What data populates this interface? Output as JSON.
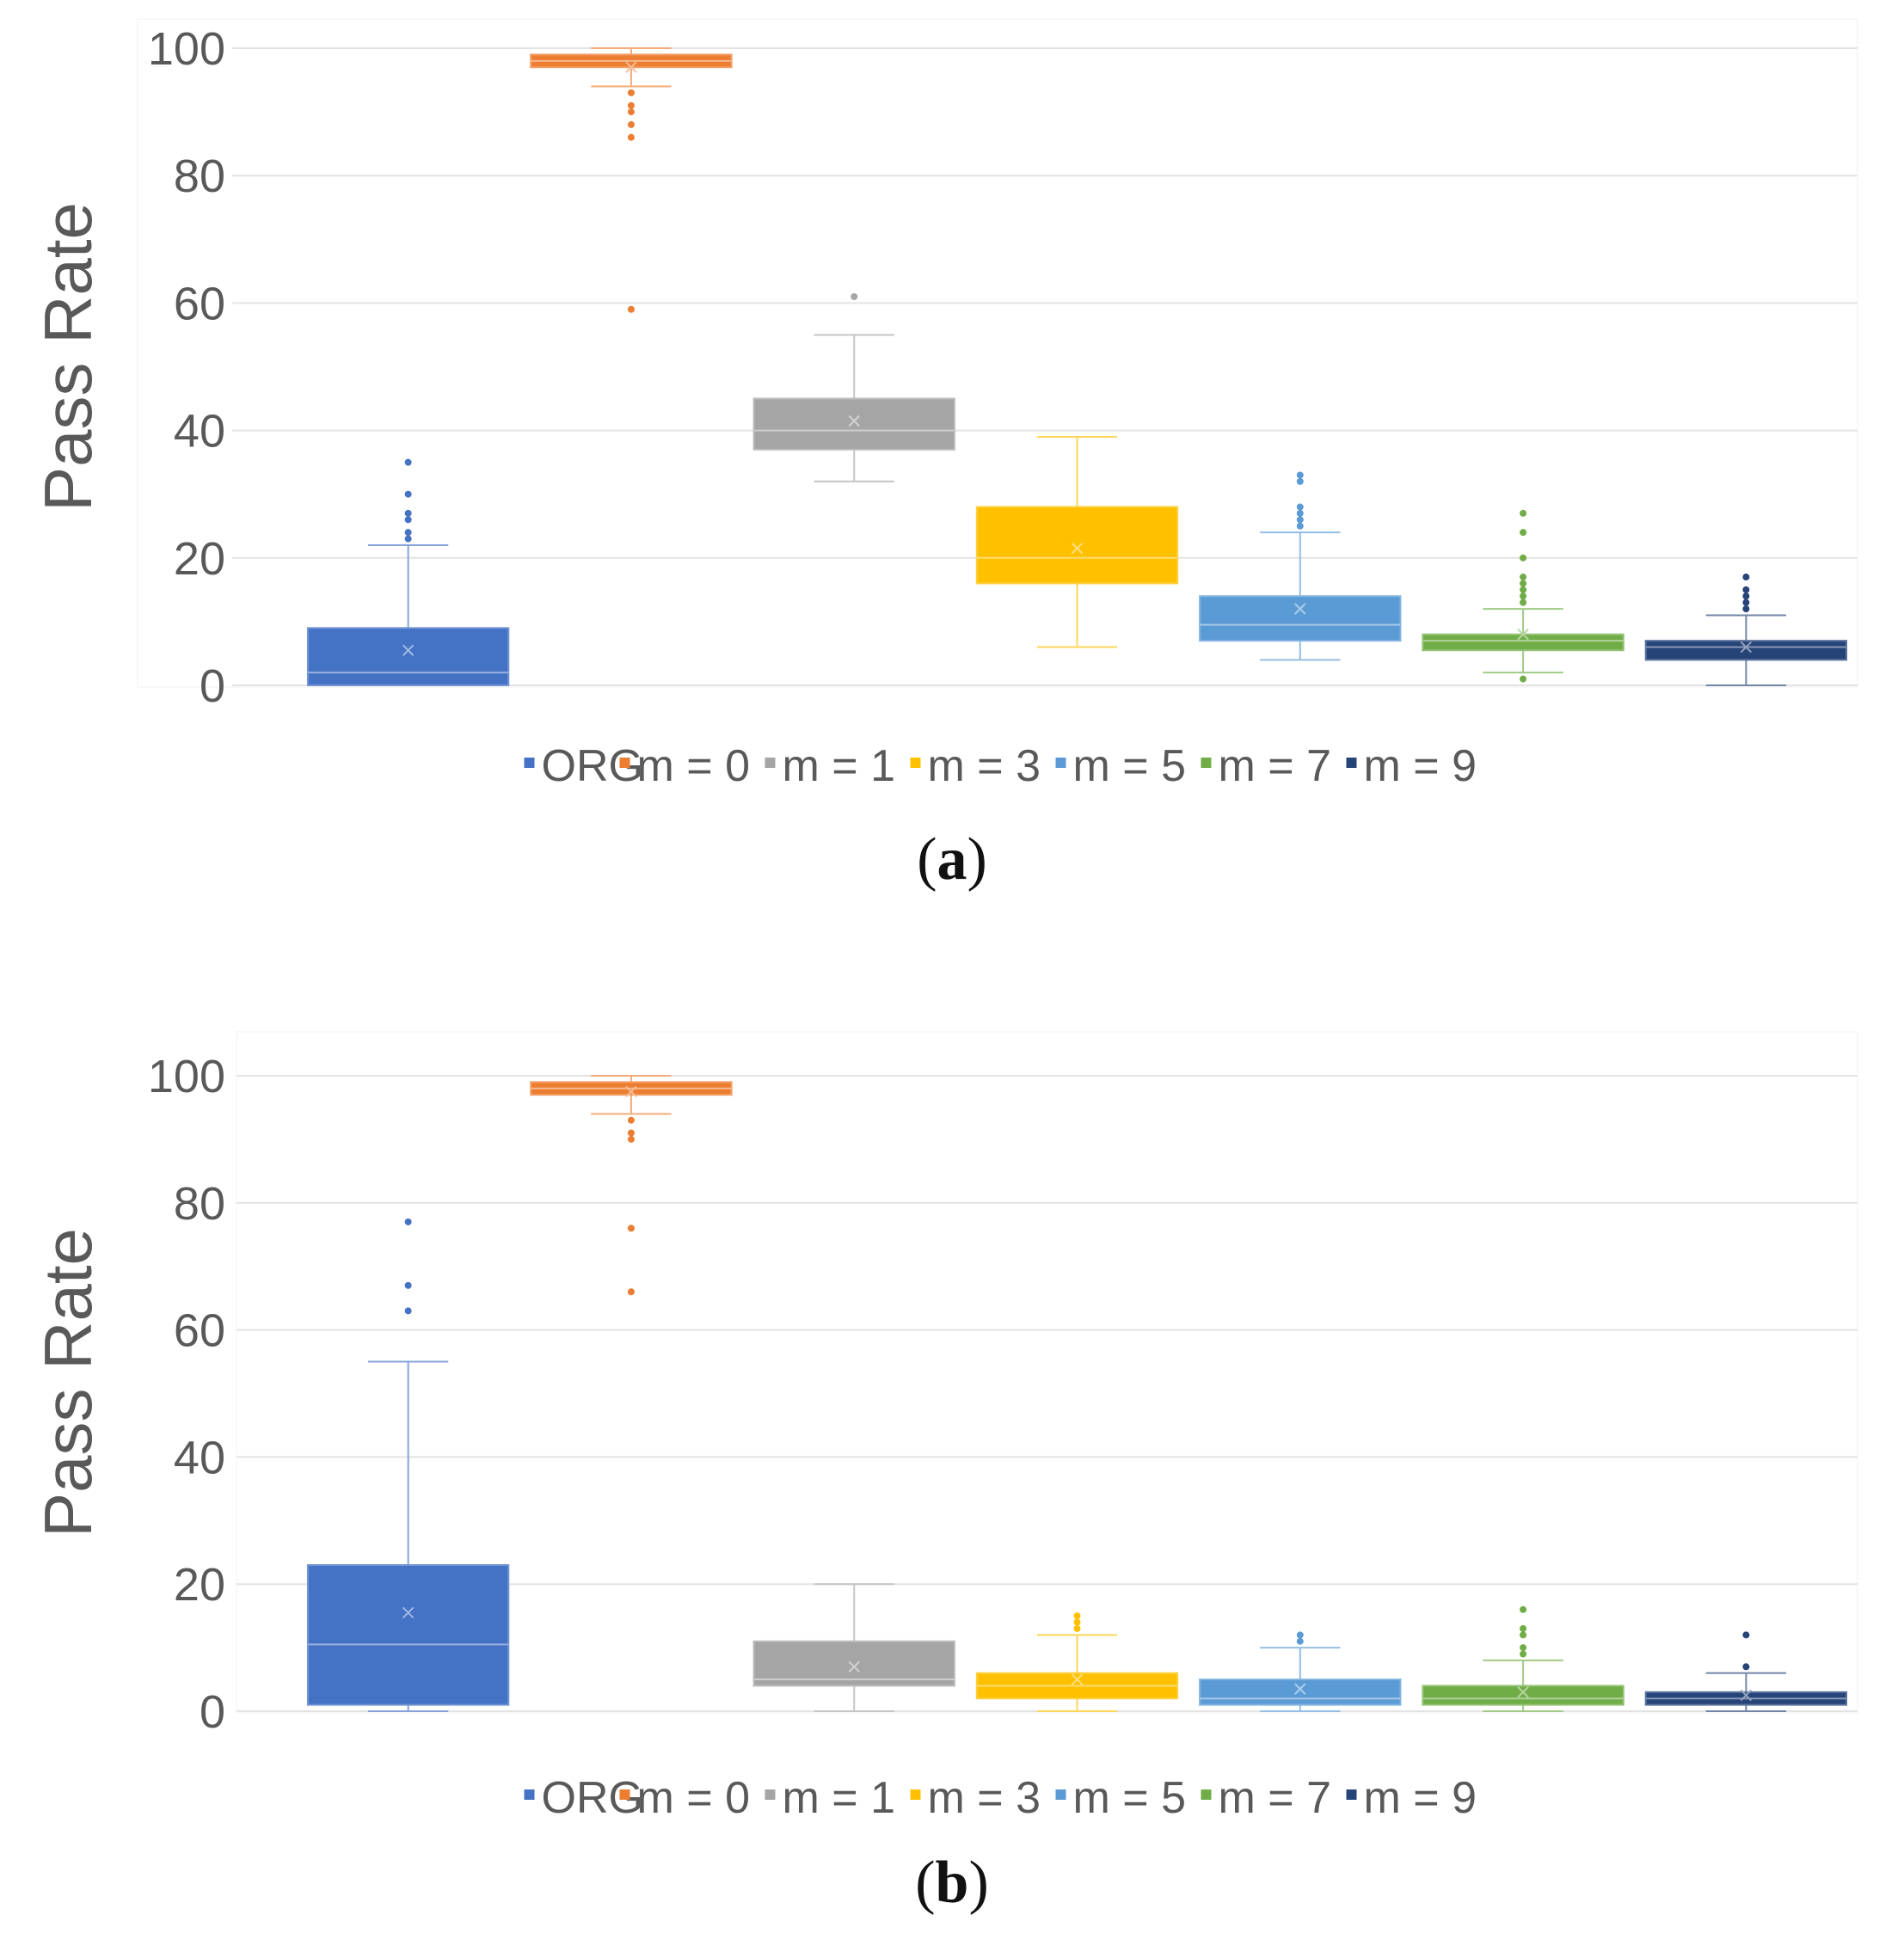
{
  "chart_data": [
    {
      "panel": "a",
      "type": "box",
      "title": "",
      "xlabel": "",
      "ylabel": "Pass Rate",
      "ylim": [
        0,
        100
      ],
      "yticks": [
        "0",
        "20",
        "40",
        "60",
        "80",
        "100"
      ],
      "legend_position": "bottom",
      "caption_letter": "a",
      "series": [
        {
          "name": "ORG",
          "color": "#4472C4",
          "min": 0,
          "q1": 0,
          "median": 2,
          "q3": 9,
          "max": 22,
          "mean": 5.5,
          "outliers": [
            23,
            24,
            26,
            27,
            30,
            35
          ]
        },
        {
          "name": "m = 0",
          "color": "#ED7D31",
          "min": 94,
          "q1": 97,
          "median": 98,
          "q3": 99,
          "max": 100,
          "mean": 97,
          "outliers": [
            93,
            91,
            90,
            88,
            86,
            59
          ]
        },
        {
          "name": "m = 1",
          "color": "#A5A5A5",
          "min": 32,
          "q1": 37,
          "median": 40,
          "q3": 45,
          "max": 55,
          "mean": 41.5,
          "outliers": [
            61
          ]
        },
        {
          "name": "m = 3",
          "color": "#FFC000",
          "min": 6,
          "q1": 16,
          "median": 20,
          "q3": 28,
          "max": 39,
          "mean": 21.5,
          "outliers": []
        },
        {
          "name": "m = 5",
          "color": "#5B9BD5",
          "min": 4,
          "q1": 7,
          "median": 9.5,
          "q3": 14,
          "max": 24,
          "mean": 12,
          "outliers": [
            25,
            26,
            27,
            28,
            32,
            33
          ]
        },
        {
          "name": "m = 7",
          "color": "#70AD47",
          "min": 2,
          "q1": 5.5,
          "median": 7,
          "q3": 8,
          "max": 12,
          "mean": 8,
          "outliers": [
            1,
            13,
            14,
            15,
            16,
            17,
            20,
            24,
            27
          ]
        },
        {
          "name": "m = 9",
          "color": "#264478",
          "min": 0,
          "q1": 4,
          "median": 6,
          "q3": 7,
          "max": 11,
          "mean": 6,
          "outliers": [
            12,
            13,
            14,
            15,
            17
          ]
        }
      ]
    },
    {
      "panel": "b",
      "type": "box",
      "title": "",
      "xlabel": "",
      "ylabel": "Pass Rate",
      "ylim": [
        0,
        100
      ],
      "yticks": [
        "0",
        "20",
        "40",
        "60",
        "80",
        "100"
      ],
      "legend_position": "bottom",
      "caption_letter": "b",
      "series": [
        {
          "name": "ORG",
          "color": "#4472C4",
          "min": 0,
          "q1": 1,
          "median": 10.5,
          "q3": 23,
          "max": 55,
          "mean": 15.5,
          "outliers": [
            63,
            67,
            77
          ]
        },
        {
          "name": "m = 0",
          "color": "#ED7D31",
          "min": 94,
          "q1": 97,
          "median": 98,
          "q3": 99,
          "max": 100,
          "mean": 97.5,
          "outliers": [
            93,
            91,
            90,
            76,
            66
          ]
        },
        {
          "name": "m = 1",
          "color": "#A5A5A5",
          "min": 0,
          "q1": 4,
          "median": 5,
          "q3": 11,
          "max": 20,
          "mean": 7,
          "outliers": []
        },
        {
          "name": "m = 3",
          "color": "#FFC000",
          "min": 0,
          "q1": 2,
          "median": 4,
          "q3": 6,
          "max": 12,
          "mean": 5,
          "outliers": [
            13,
            14,
            15
          ]
        },
        {
          "name": "m = 5",
          "color": "#5B9BD5",
          "min": 0,
          "q1": 1,
          "median": 2,
          "q3": 5,
          "max": 10,
          "mean": 3.5,
          "outliers": [
            11,
            12
          ]
        },
        {
          "name": "m = 7",
          "color": "#70AD47",
          "min": 0,
          "q1": 1,
          "median": 2,
          "q3": 4,
          "max": 8,
          "mean": 3,
          "outliers": [
            9,
            10,
            12,
            13,
            16
          ]
        },
        {
          "name": "m = 9",
          "color": "#264478",
          "min": 0,
          "q1": 1,
          "median": 2,
          "q3": 3,
          "max": 6,
          "mean": 2.5,
          "outliers": [
            7,
            12
          ]
        }
      ]
    }
  ]
}
